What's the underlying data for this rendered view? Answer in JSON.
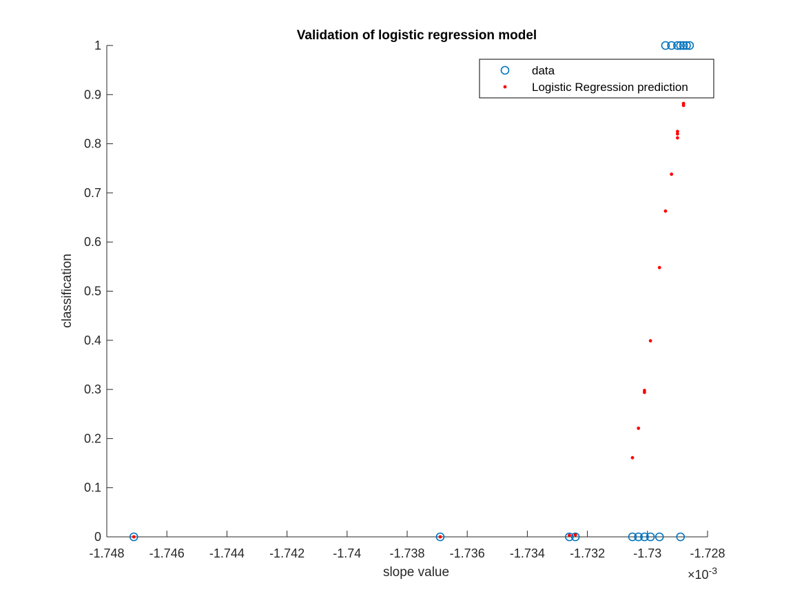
{
  "chart_data": {
    "type": "scatter",
    "title": "Validation of logistic regression model",
    "xlabel": "slope value",
    "ylabel": "classification",
    "x_exponent_label": "×10",
    "x_exponent_power": "-3",
    "xlim": [
      -1.748,
      -1.728
    ],
    "ylim": [
      0,
      1
    ],
    "xticks": [
      -1.748,
      -1.746,
      -1.744,
      -1.742,
      -1.74,
      -1.738,
      -1.736,
      -1.734,
      -1.732,
      -1.73,
      -1.728
    ],
    "xtick_labels": [
      "-1.748",
      "-1.746",
      "-1.744",
      "-1.742",
      "-1.74",
      "-1.738",
      "-1.736",
      "-1.734",
      "-1.732",
      "-1.73",
      "-1.728"
    ],
    "yticks": [
      0,
      0.1,
      0.2,
      0.3,
      0.4,
      0.5,
      0.6,
      0.7,
      0.8,
      0.9,
      1
    ],
    "ytick_labels": [
      "0",
      "0.1",
      "0.2",
      "0.3",
      "0.4",
      "0.5",
      "0.6",
      "0.7",
      "0.8",
      "0.9",
      "1"
    ],
    "grid": false,
    "legend_position": "top-right",
    "colors": {
      "data": "#0072BD",
      "prediction": "#FF0000",
      "axis": "#262626"
    },
    "series": [
      {
        "name": "data",
        "marker": "circle-open",
        "points": [
          [
            -1.7471,
            0
          ],
          [
            -1.7369,
            0
          ],
          [
            -1.7326,
            0
          ],
          [
            -1.7324,
            0
          ],
          [
            -1.7305,
            0
          ],
          [
            -1.7303,
            0
          ],
          [
            -1.7301,
            0
          ],
          [
            -1.7299,
            0
          ],
          [
            -1.7296,
            0
          ],
          [
            -1.7289,
            0
          ],
          [
            -1.7294,
            1
          ],
          [
            -1.7292,
            1
          ],
          [
            -1.729,
            1
          ],
          [
            -1.7289,
            1
          ],
          [
            -1.7288,
            1
          ],
          [
            -1.7287,
            1
          ],
          [
            -1.7286,
            1
          ]
        ]
      },
      {
        "name": "Logistic Regression prediction",
        "marker": "dot",
        "points": [
          [
            -1.7471,
            0
          ],
          [
            -1.7369,
            0
          ],
          [
            -1.7326,
            0.003
          ],
          [
            -1.7324,
            0.004
          ],
          [
            -1.7305,
            0.161
          ],
          [
            -1.7303,
            0.221
          ],
          [
            -1.7301,
            0.294
          ],
          [
            -1.7301,
            0.298
          ],
          [
            -1.7299,
            0.399
          ],
          [
            -1.7296,
            0.548
          ],
          [
            -1.7294,
            0.663
          ],
          [
            -1.7292,
            0.738
          ],
          [
            -1.729,
            0.812
          ],
          [
            -1.729,
            0.82
          ],
          [
            -1.729,
            0.825
          ],
          [
            -1.7288,
            0.878
          ],
          [
            -1.7288,
            0.882
          ]
        ]
      }
    ]
  }
}
